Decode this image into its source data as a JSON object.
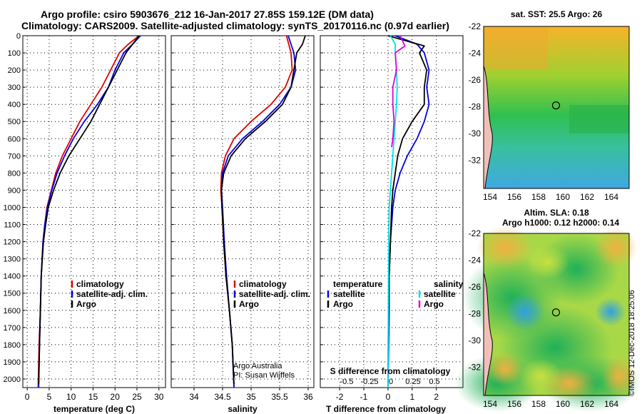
{
  "title_line1": "Argo profile: csiro 5903676_212 16-Jan-2017 27.85S 159.12E (DM data)",
  "title_line2": "Climatology: CARS2009. Satellite-adjusted climatology: synTS_20170116.nc (0.97d earlier)",
  "copyright": "©IMOS 12-Dec-2018 18:25:06",
  "colors": {
    "climatology": "#e00000",
    "satellite": "#0000e0",
    "argo": "#000000",
    "sat_s": "#00e0e0",
    "argo_s": "#e000e0"
  },
  "chart_data": [
    {
      "type": "line",
      "id": "temperature",
      "xlabel": "temperature (deg C)",
      "xlim": [
        -1,
        31.5
      ],
      "xticks": [
        0,
        5,
        10,
        15,
        20,
        25,
        30
      ],
      "ylim": [
        0,
        2050
      ],
      "yticks": [
        0,
        100,
        200,
        300,
        400,
        500,
        600,
        700,
        800,
        900,
        1000,
        1100,
        1200,
        1300,
        1400,
        1500,
        1600,
        1700,
        1800,
        1900,
        2000
      ],
      "legend": [
        "climatology",
        "satellite-adj. clim.",
        "Argo"
      ],
      "series": [
        {
          "name": "climatology",
          "color": "#e00000",
          "x": [
            25.5,
            23,
            21,
            19,
            17,
            14.5,
            12,
            10,
            8,
            6.5,
            5.5,
            4.5,
            4,
            3.6,
            3.2,
            3,
            2.7,
            2.5
          ],
          "y": [
            0,
            50,
            100,
            200,
            300,
            400,
            500,
            600,
            700,
            800,
            900,
            1000,
            1100,
            1200,
            1400,
            1600,
            1800,
            2050
          ]
        },
        {
          "name": "satellite-adj. clim.",
          "color": "#0000e0",
          "x": [
            25.8,
            24,
            22,
            20,
            18.5,
            16,
            13,
            10.5,
            8.5,
            6.8,
            5.6,
            4.6,
            4,
            3.6,
            3.2,
            3,
            2.8,
            2.6
          ],
          "y": [
            0,
            50,
            100,
            200,
            300,
            400,
            500,
            600,
            700,
            800,
            900,
            1000,
            1100,
            1200,
            1400,
            1600,
            1800,
            2050
          ]
        },
        {
          "name": "Argo",
          "color": "#000000",
          "x": [
            25.5,
            24,
            22.5,
            20.5,
            18.5,
            16.5,
            14.5,
            12,
            9.5,
            7.5,
            6,
            4.8,
            4.2,
            3.7,
            3.2,
            3,
            2.8,
            2.6
          ],
          "y": [
            0,
            50,
            100,
            200,
            300,
            400,
            500,
            600,
            700,
            800,
            900,
            1000,
            1100,
            1200,
            1400,
            1600,
            1800,
            2030
          ]
        }
      ]
    },
    {
      "type": "line",
      "id": "salinity",
      "xlabel": "salinity",
      "xlim": [
        33.6,
        36.1
      ],
      "xticks": [
        34,
        34.5,
        35,
        35.5,
        36
      ],
      "ylim": [
        0,
        2050
      ],
      "legend": [
        "climatology",
        "satellite-adj. clim.",
        "Argo"
      ],
      "annotation": [
        "Argo Australia",
        "PI: Susan Wijffels"
      ],
      "series": [
        {
          "name": "climatology",
          "color": "#e00000",
          "x": [
            35.62,
            35.66,
            35.7,
            35.72,
            35.6,
            35.35,
            35.0,
            34.7,
            34.55,
            34.48,
            34.47,
            34.49,
            34.52,
            34.56,
            34.62,
            34.67,
            34.7
          ],
          "y": [
            0,
            50,
            100,
            200,
            300,
            400,
            500,
            600,
            700,
            800,
            900,
            1000,
            1200,
            1400,
            1600,
            1800,
            2050
          ]
        },
        {
          "name": "satellite-adj. clim.",
          "color": "#0000e0",
          "x": [
            35.65,
            35.7,
            35.75,
            35.78,
            35.7,
            35.5,
            35.2,
            34.85,
            34.6,
            34.5,
            34.48,
            34.5,
            34.53,
            34.57,
            34.62,
            34.67,
            34.7
          ],
          "y": [
            0,
            50,
            100,
            200,
            300,
            400,
            500,
            600,
            700,
            800,
            900,
            1000,
            1200,
            1400,
            1600,
            1800,
            2050
          ]
        },
        {
          "name": "Argo",
          "color": "#000000",
          "x": [
            35.95,
            35.9,
            35.8,
            35.75,
            35.7,
            35.55,
            35.25,
            34.9,
            34.65,
            34.52,
            34.48,
            34.49,
            34.52,
            34.56,
            34.62,
            34.67,
            34.7
          ],
          "y": [
            0,
            50,
            100,
            200,
            300,
            400,
            500,
            600,
            700,
            800,
            900,
            1000,
            1200,
            1400,
            1600,
            1800,
            2030
          ]
        }
      ]
    },
    {
      "type": "line",
      "id": "difference",
      "xlabel": "T difference from climatology",
      "xlim": [
        -2.8,
        3.1
      ],
      "xticks": [
        -2,
        -1,
        0,
        1,
        2
      ],
      "s_label": "S difference from climatology",
      "s_ticks": [
        "-0.5",
        "-0.25",
        "0",
        "0.25",
        "0.5"
      ],
      "ylim": [
        0,
        2050
      ],
      "legend_t_title": "temperature",
      "legend_s_title": "salinity",
      "legend_t": [
        "satellite",
        "Argo"
      ],
      "legend_s": [
        "satellite",
        "Argo"
      ],
      "series": [
        {
          "name": "T satellite",
          "color": "#0000e0",
          "x": [
            0.3,
            1.2,
            1.5,
            1.7,
            1.6,
            1.7,
            1.5,
            1.2,
            0.8,
            0.5,
            0.3,
            0.2,
            0.1,
            0.05,
            0.05,
            0
          ],
          "y": [
            0,
            50,
            100,
            200,
            300,
            400,
            500,
            600,
            700,
            800,
            900,
            1000,
            1200,
            1400,
            1600,
            2050
          ]
        },
        {
          "name": "T Argo",
          "color": "#000000",
          "x": [
            0,
            1.5,
            1.3,
            1.6,
            1.5,
            1.5,
            1.0,
            0.6,
            0.4,
            0.3,
            0.2,
            0.15,
            0.1,
            0.05,
            0.02,
            0
          ],
          "y": [
            0,
            60,
            100,
            200,
            300,
            400,
            500,
            600,
            700,
            800,
            900,
            1000,
            1200,
            1400,
            1600,
            2030
          ]
        },
        {
          "name": "S satellite",
          "color": "#00e0e0",
          "x": [
            0.1,
            0.3,
            0.3,
            0.35,
            0.38,
            0.35,
            0.3,
            0.25,
            0.2,
            0.15,
            0.1,
            0.05,
            0.03,
            0
          ],
          "y": [
            0,
            50,
            100,
            200,
            300,
            400,
            500,
            600,
            700,
            800,
            900,
            1000,
            1200,
            2050
          ]
        },
        {
          "name": "S Argo",
          "color": "#e000e0",
          "x": [
            0.5,
            0.7,
            0.3,
            0.35,
            0.2,
            0.2,
            0.25,
            0.2,
            0.15
          ],
          "y": [
            0,
            60,
            100,
            200,
            300,
            400,
            500,
            600,
            650
          ]
        }
      ]
    },
    {
      "type": "heatmap",
      "id": "sst_map",
      "title": "sat. SST: 25.5 Argo: 26",
      "xticks": [
        "154",
        "156",
        "158",
        "160",
        "162",
        "164"
      ],
      "yticks": [
        "-22",
        "-24",
        "-26",
        "-28",
        "-30",
        "-32"
      ],
      "marker": {
        "lon": 159.12,
        "lat": -27.85
      }
    },
    {
      "type": "heatmap",
      "id": "sla_map",
      "title": "Altim. SLA: 0.18",
      "subtitle": "Argo h1000: 0.12 h2000: 0.14",
      "xticks": [
        "154",
        "156",
        "158",
        "160",
        "162",
        "164"
      ],
      "yticks": [
        "-22",
        "-24",
        "-26",
        "-28",
        "-30",
        "-32"
      ],
      "marker": {
        "lon": 159.12,
        "lat": -27.85
      }
    }
  ]
}
